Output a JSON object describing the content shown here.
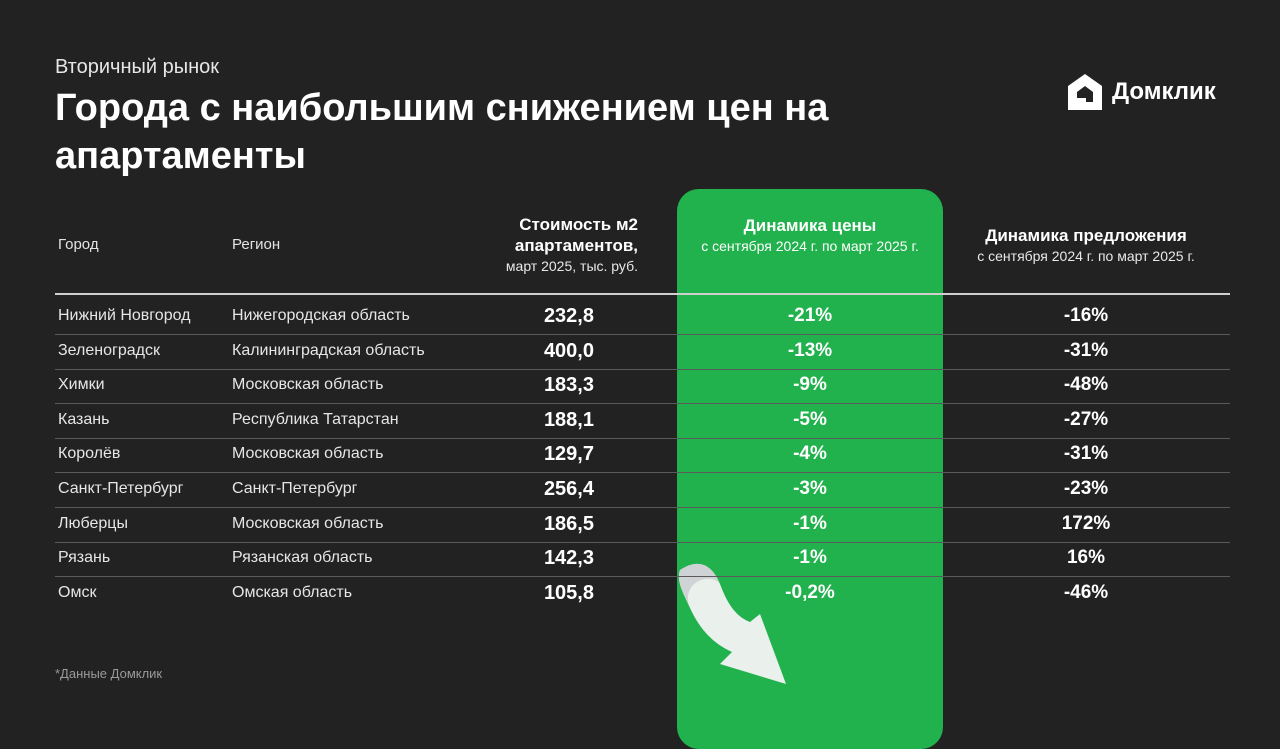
{
  "header": {
    "subtitle": "Вторичный рынок",
    "title": "Города с наибольшим снижением цен на апартаменты"
  },
  "logo": {
    "text": "Домклик",
    "icon": "domclick-house-icon"
  },
  "table": {
    "columns": {
      "city": "Город",
      "region": "Регион",
      "price_title": "Стоимость м2 апартаментов,",
      "price_sub": "март 2025, тыс. руб.",
      "change_title": "Динамика цены",
      "change_sub": "с сентября 2024 г. по март 2025 г.",
      "supply_title": "Динамика предложения",
      "supply_sub": "с сентября 2024 г. по март 2025 г."
    },
    "rows": [
      {
        "city": "Нижний Новгород",
        "region": "Нижегородская область",
        "price": "232,8",
        "change": "-21%",
        "supply": "-16%"
      },
      {
        "city": "Зеленоградск",
        "region": "Калининградская область",
        "price": "400,0",
        "change": "-13%",
        "supply": "-31%"
      },
      {
        "city": "Химки",
        "region": "Московская область",
        "price": "183,3",
        "change": "-9%",
        "supply": "-48%"
      },
      {
        "city": "Казань",
        "region": "Республика Татарстан",
        "price": "188,1",
        "change": "-5%",
        "supply": "-27%"
      },
      {
        "city": "Королёв",
        "region": "Московская область",
        "price": "129,7",
        "change": "-4%",
        "supply": "-31%"
      },
      {
        "city": "Санкт-Петербург",
        "region": "Санкт-Петербург",
        "price": "256,4",
        "change": "-3%",
        "supply": "-23%"
      },
      {
        "city": "Люберцы",
        "region": "Московская область",
        "price": "186,5",
        "change": "-1%",
        "supply": "172%"
      },
      {
        "city": "Рязань",
        "region": "Рязанская область",
        "price": "142,3",
        "change": "-1%",
        "supply": "16%"
      },
      {
        "city": "Омск",
        "region": "Омская область",
        "price": "105,8",
        "change": "-0,2%",
        "supply": "-46%"
      }
    ]
  },
  "footnote": "*Данные Домклик",
  "colors": {
    "background": "#222222",
    "accent_green": "#21b24d",
    "text": "#ffffff"
  },
  "decorations": {
    "arrow_icon": "down-arrow-icon"
  }
}
